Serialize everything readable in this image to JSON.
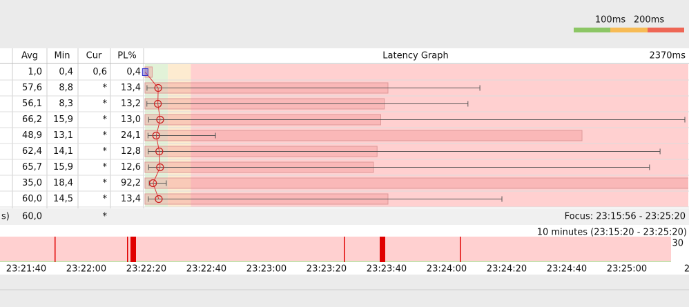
{
  "legend": {
    "labels": [
      "100ms",
      "200ms"
    ]
  },
  "table": {
    "headers": [
      "Avg",
      "Min",
      "Cur",
      "PL%"
    ],
    "graph_header": "Latency Graph",
    "scale_label": "2370ms",
    "rows": [
      [
        "1,0",
        "0,4",
        "0,6",
        "0,4"
      ],
      [
        "57,6",
        "8,8",
        "*",
        "13,4"
      ],
      [
        "56,1",
        "8,3",
        "*",
        "13,2"
      ],
      [
        "66,2",
        "15,9",
        "*",
        "13,0"
      ],
      [
        "48,9",
        "13,1",
        "*",
        "24,1"
      ],
      [
        "62,4",
        "14,1",
        "*",
        "12,8"
      ],
      [
        "65,7",
        "15,9",
        "*",
        "12,6"
      ],
      [
        "35,0",
        "18,4",
        "*",
        "92,2"
      ],
      [
        "60,0",
        "14,5",
        "*",
        "13,4"
      ]
    ],
    "summary": [
      "s)",
      "60,0",
      "*"
    ],
    "focus": "Focus: 23:15:56 - 23:25:20"
  },
  "graph": {
    "xlim": [
      0,
      2370
    ],
    "thresholds": [
      100,
      200
    ],
    "pl_max": 30,
    "avg": [
      1.0,
      57.6,
      56.1,
      66.2,
      48.9,
      62.4,
      65.7,
      35.0,
      60.0
    ],
    "min": [
      0.4,
      8.8,
      8.3,
      15.9,
      13.1,
      14.1,
      15.9,
      18.4,
      14.5
    ],
    "max": [
      null,
      1459,
      1407,
      2352,
      307,
      2244,
      2198,
      93,
      1555
    ],
    "pl": [
      0.4,
      13.4,
      13.2,
      13.0,
      24.1,
      12.8,
      12.6,
      92.2,
      13.4
    ]
  },
  "timeline": {
    "title": "10 minutes (23:15:20 - 23:25:20)",
    "scale_label": "30",
    "ticks": [
      "23:21:40",
      "23:22:00",
      "23:22:20",
      "23:22:40",
      "23:23:00",
      "23:23:20",
      "23:23:40",
      "23:24:00",
      "23:24:20",
      "23:24:40",
      "23:25:00",
      "2"
    ]
  }
}
